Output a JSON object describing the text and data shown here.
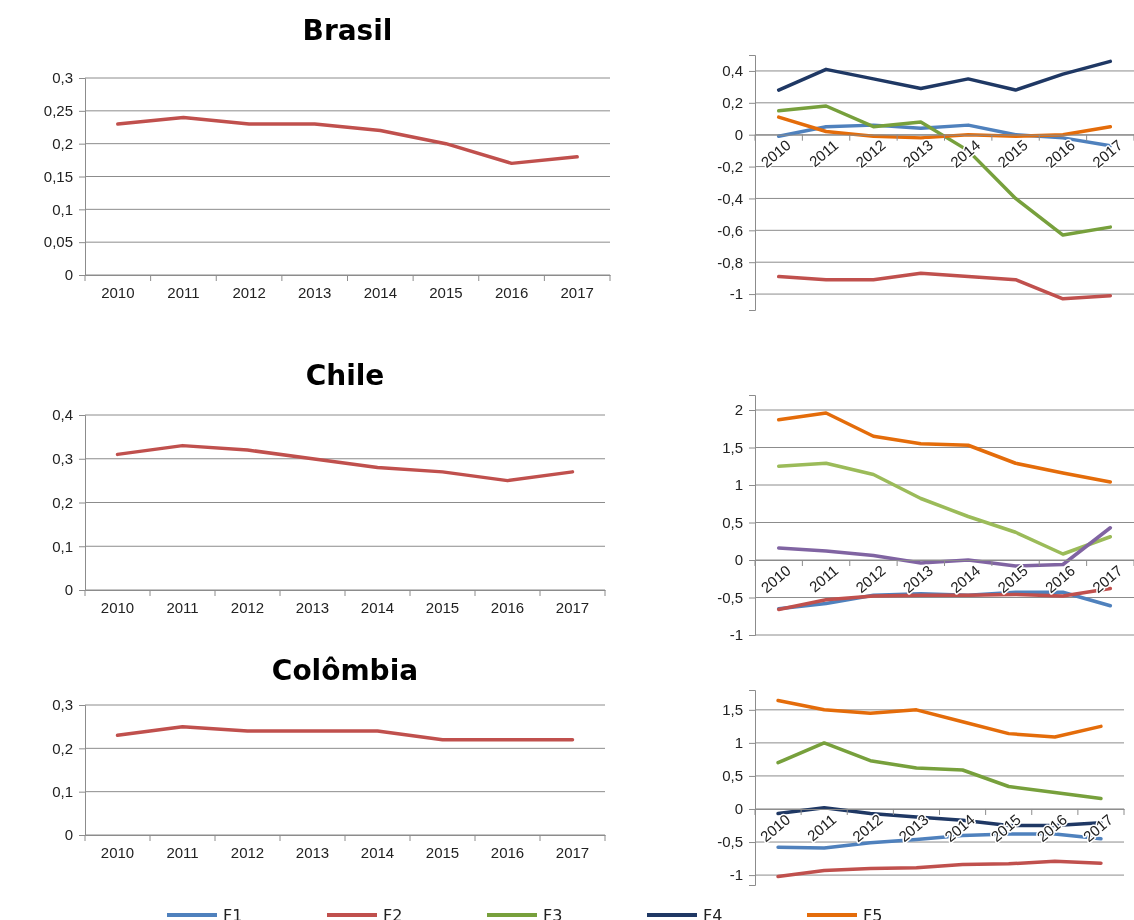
{
  "chart_data": [
    {
      "type": "line",
      "title": "Brasil",
      "categories": [
        "2010",
        "2011",
        "2012",
        "2013",
        "2014",
        "2015",
        "2016",
        "2017"
      ],
      "series": [
        {
          "color": "#c0504d",
          "values": [
            0.23,
            0.24,
            0.23,
            0.23,
            0.22,
            0.2,
            0.17,
            0.18
          ]
        }
      ],
      "ylim": [
        0,
        0.3
      ],
      "yticks": [
        0,
        {
          "value": 0.05,
          "label": "0,05"
        },
        {
          "value": 0.1,
          "label": "0,1"
        },
        {
          "value": 0.15,
          "label": "0,15"
        },
        {
          "value": 0.2,
          "label": "0,2"
        },
        {
          "value": 0.25,
          "label": "0,25"
        },
        {
          "value": 0.3,
          "label": "0,3"
        }
      ],
      "grid": "y"
    },
    {
      "type": "line",
      "categories": [
        "2010",
        "2011",
        "2012",
        "2013",
        "2014",
        "2015",
        "2016",
        "2017"
      ],
      "series": [
        {
          "color": "#4f81bd",
          "values": [
            -0.01,
            0.05,
            0.06,
            0.04,
            0.06,
            0.0,
            -0.02,
            -0.07
          ]
        },
        {
          "color": "#c0504d",
          "values": [
            -0.89,
            -0.91,
            -0.91,
            -0.87,
            -0.89,
            -0.91,
            -1.03,
            -1.01
          ]
        },
        {
          "color": "#77a03c",
          "values": [
            0.15,
            0.18,
            0.05,
            0.08,
            -0.1,
            -0.4,
            -0.63,
            -0.58
          ]
        },
        {
          "color": "#1f3864",
          "values": [
            0.28,
            0.41,
            0.35,
            0.29,
            0.35,
            0.28,
            0.38,
            0.46
          ]
        },
        {
          "color": "#e46c0a",
          "values": [
            0.11,
            0.02,
            -0.01,
            -0.02,
            0.0,
            -0.01,
            0.0,
            0.05
          ]
        }
      ],
      "ylim": [
        -1.1,
        0.5
      ],
      "yticks": [
        -1,
        {
          "value": -0.8,
          "label": "-0,8"
        },
        {
          "value": -0.6,
          "label": "-0,6"
        },
        {
          "value": -0.4,
          "label": "-0,4"
        },
        {
          "value": -0.2,
          "label": "-0,2"
        },
        0,
        {
          "value": 0.2,
          "label": "0,2"
        },
        {
          "value": 0.4,
          "label": "0,4"
        }
      ],
      "grid": "y"
    },
    {
      "type": "line",
      "title": "Chile",
      "categories": [
        "2010",
        "2011",
        "2012",
        "2013",
        "2014",
        "2015",
        "2016",
        "2017"
      ],
      "series": [
        {
          "color": "#c0504d",
          "values": [
            0.31,
            0.33,
            0.32,
            0.3,
            0.28,
            0.27,
            0.25,
            0.27
          ]
        }
      ],
      "ylim": [
        0,
        0.4
      ],
      "yticks": [
        0,
        {
          "value": 0.1,
          "label": "0,1"
        },
        {
          "value": 0.2,
          "label": "0,2"
        },
        {
          "value": 0.3,
          "label": "0,3"
        },
        {
          "value": 0.4,
          "label": "0,4"
        }
      ],
      "grid": "y"
    },
    {
      "type": "line",
      "categories": [
        "2010",
        "2011",
        "2012",
        "2013",
        "2014",
        "2015",
        "2016",
        "2017"
      ],
      "series": [
        {
          "color": "#e46c0a",
          "values": [
            1.87,
            1.96,
            1.65,
            1.55,
            1.53,
            1.29,
            1.16,
            1.04
          ]
        },
        {
          "color": "#9bbb59",
          "values": [
            1.25,
            1.29,
            1.14,
            0.82,
            0.58,
            0.37,
            0.08,
            0.31
          ]
        },
        {
          "color": "#8064a2",
          "values": [
            0.16,
            0.12,
            0.06,
            -0.04,
            0.0,
            -0.08,
            -0.06,
            0.43
          ]
        },
        {
          "color": "#4f81bd",
          "values": [
            -0.65,
            -0.58,
            -0.47,
            -0.45,
            -0.47,
            -0.43,
            -0.43,
            -0.61
          ]
        },
        {
          "color": "#c0504d",
          "values": [
            -0.66,
            -0.53,
            -0.48,
            -0.47,
            -0.47,
            -0.46,
            -0.48,
            -0.38
          ]
        }
      ],
      "ylim": [
        -1,
        2.2
      ],
      "yticks": [
        -1,
        {
          "value": -0.5,
          "label": "-0,5"
        },
        0,
        {
          "value": 0.5,
          "label": "0,5"
        },
        1,
        {
          "value": 1.5,
          "label": "1,5"
        },
        2
      ],
      "grid": "y"
    },
    {
      "type": "line",
      "title": "Colômbia",
      "categories": [
        "2010",
        "2011",
        "2012",
        "2013",
        "2014",
        "2015",
        "2016",
        "2017"
      ],
      "series": [
        {
          "color": "#c0504d",
          "values": [
            0.23,
            0.25,
            0.24,
            0.24,
            0.24,
            0.22,
            0.22,
            0.22
          ]
        }
      ],
      "ylim": [
        0,
        0.3
      ],
      "yticks": [
        0,
        {
          "value": 0.1,
          "label": "0,1"
        },
        {
          "value": 0.2,
          "label": "0,2"
        },
        {
          "value": 0.3,
          "label": "0,3"
        }
      ],
      "grid": "y"
    },
    {
      "type": "line",
      "categories": [
        "2010",
        "2011",
        "2012",
        "2013",
        "2014",
        "2015",
        "2016",
        "2017"
      ],
      "series": [
        {
          "name": "F1",
          "color": "#4f81bd",
          "values": [
            -0.58,
            -0.59,
            -0.51,
            -0.46,
            -0.4,
            -0.38,
            -0.38,
            -0.45
          ]
        },
        {
          "name": "F2",
          "color": "#c0504d",
          "values": [
            -1.02,
            -0.93,
            -0.9,
            -0.89,
            -0.84,
            -0.83,
            -0.79,
            -0.82
          ]
        },
        {
          "name": "F3",
          "color": "#77a03c",
          "values": [
            0.7,
            1.0,
            0.73,
            0.62,
            0.59,
            0.34,
            0.25,
            0.16
          ]
        },
        {
          "name": "F4",
          "color": "#1f3864",
          "values": [
            -0.07,
            0.02,
            -0.07,
            -0.12,
            -0.17,
            -0.25,
            -0.25,
            -0.21
          ]
        },
        {
          "name": "F5",
          "color": "#e46c0a",
          "values": [
            1.64,
            1.5,
            1.45,
            1.5,
            1.32,
            1.14,
            1.09,
            1.25
          ]
        }
      ],
      "ylim": [
        -1.15,
        1.8
      ],
      "yticks": [
        -1,
        {
          "value": -0.5,
          "label": "-0,5"
        },
        0,
        {
          "value": 0.5,
          "label": "0,5"
        },
        1,
        {
          "value": 1.5,
          "label": "1,5"
        }
      ],
      "grid": "y",
      "legend": "bottom"
    }
  ]
}
